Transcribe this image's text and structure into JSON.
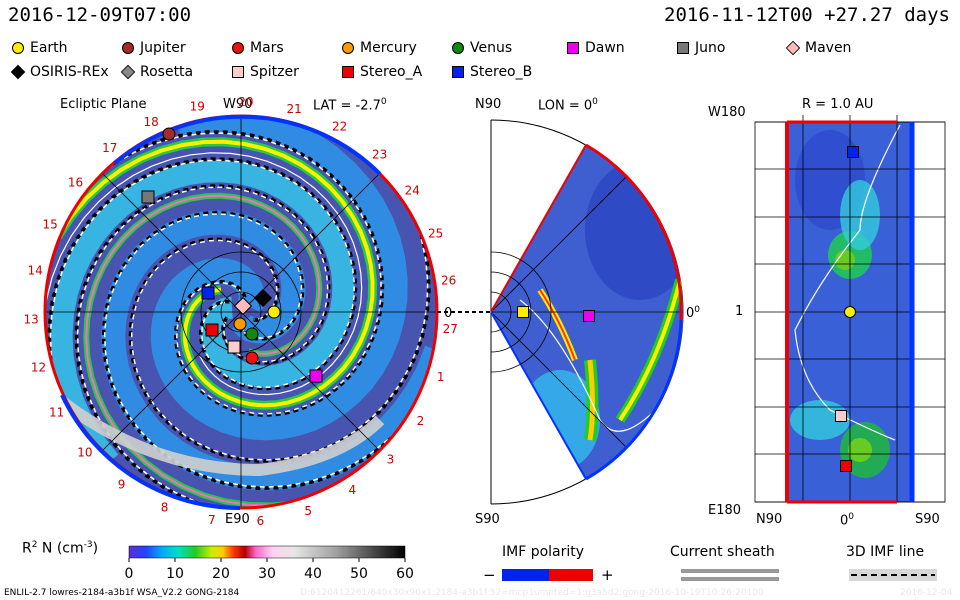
{
  "header": {
    "left_timestamp": "2016-12-09T07:00",
    "right_timestamp": "2016-11-12T00 +27.27 days"
  },
  "legend": [
    {
      "name": "Earth",
      "shape": "circle",
      "color": "#ffee00"
    },
    {
      "name": "Jupiter",
      "shape": "circle",
      "color": "#a52a2a"
    },
    {
      "name": "Mars",
      "shape": "circle",
      "color": "#ee1111"
    },
    {
      "name": "Mercury",
      "shape": "circle",
      "color": "#ff9900"
    },
    {
      "name": "Venus",
      "shape": "circle",
      "color": "#118811"
    },
    {
      "name": "Dawn",
      "shape": "square",
      "color": "#ee00ee"
    },
    {
      "name": "Juno",
      "shape": "square",
      "color": "#777777"
    },
    {
      "name": "Maven",
      "shape": "diamond",
      "color": "#ffbbbb"
    },
    {
      "name": "OSIRIS-REx",
      "shape": "diamond",
      "color": "#000000"
    },
    {
      "name": "Rosetta",
      "shape": "diamond",
      "color": "#888888"
    },
    {
      "name": "Spitzer",
      "shape": "square",
      "color": "#ffcccc"
    },
    {
      "name": "Stereo_A",
      "shape": "square",
      "color": "#ee0000"
    },
    {
      "name": "Stereo_B",
      "shape": "square",
      "color": "#0022ee"
    }
  ],
  "panels": {
    "ecliptic": {
      "title": "Ecliptic Plane",
      "top_label": "W90",
      "bottom_label": "E90",
      "lat_label": "LAT = -2.7",
      "degree_mark": "0",
      "right_angle_label": "0",
      "rim_numbers": [
        "19",
        "20",
        "21",
        "22",
        "23",
        "24",
        "25",
        "26",
        "27",
        "1",
        "2",
        "3",
        "4",
        "5",
        "6",
        "7",
        "8",
        "9",
        "10",
        "11",
        "12",
        "13",
        "14",
        "15",
        "16",
        "17",
        "18"
      ]
    },
    "meridional": {
      "top_label": "N90",
      "lon_label": "LON = 0",
      "degree_mark": "0",
      "right_label": "0",
      "bottom_label": "S90"
    },
    "radial": {
      "title": "R = 1.0 AU",
      "top_left_label": "W180",
      "mid_left_label": "1",
      "bottom_left_label": "E180",
      "x_ticks": [
        "N90",
        "0",
        "S90"
      ],
      "degree_mark": "0"
    }
  },
  "colorbar": {
    "label": "R",
    "label_sup": "2",
    "label_rest": " N (cm",
    "label_exp": "-3",
    "label_close": ")",
    "ticks": [
      "0",
      "10",
      "20",
      "30",
      "40",
      "50",
      "60"
    ],
    "range": [
      0,
      60
    ]
  },
  "imf_polarity": {
    "label": "IMF polarity",
    "minus": "−",
    "plus": "+",
    "neg_color": "#0022ee",
    "pos_color": "#ee0000"
  },
  "current_sheath": {
    "label": "Current sheath"
  },
  "imf_line": {
    "label": "3D IMF line"
  },
  "footer": {
    "left": "ENLIL-2.7 lowres-2184-a3b1f WSA_V2.2 GONG-2184",
    "middle": "D:6120412261/640x30x90x1:2184-a3b1f:52=mcp1umnted=1:g3a5d2:gong-2016-10-19T10:26:20100",
    "right": "2016-12-04"
  },
  "chart_data": [
    {
      "type": "heatmap",
      "title": "Ecliptic Plane",
      "quantity": "R^2 N (cm^-3)",
      "color_range": [
        0,
        60
      ],
      "lat_deg": -2.7,
      "axis_labels": {
        "top": "W90",
        "bottom": "E90"
      },
      "bodies_shown": [
        "Earth",
        "Jupiter",
        "Mars",
        "Mercury",
        "Venus",
        "Dawn",
        "Juno",
        "Maven",
        "OSIRIS-REx",
        "Rosetta",
        "Spitzer",
        "Stereo_A",
        "Stereo_B"
      ]
    },
    {
      "type": "heatmap",
      "quantity": "R^2 N (cm^-3)",
      "lon_deg": 0,
      "axis_labels": {
        "top": "N90",
        "bottom": "S90",
        "right": "0"
      }
    },
    {
      "type": "heatmap",
      "title": "R = 1.0 AU",
      "quantity": "R^2 N (cm^-3)",
      "radius_au": 1.0,
      "x_ticks": [
        "N90",
        "0",
        "S90"
      ],
      "y_labels": [
        "W180",
        "1",
        "E180"
      ]
    }
  ]
}
